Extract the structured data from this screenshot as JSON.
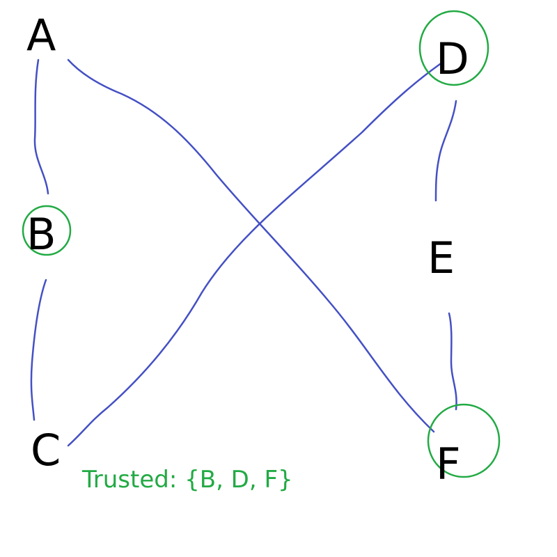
{
  "colors": {
    "background": "#ffffff",
    "node_text": "#000000",
    "edge": "#4450c4",
    "trusted": "#22aa44"
  },
  "nodes": [
    {
      "id": "A",
      "label": "A",
      "trusted": false
    },
    {
      "id": "B",
      "label": "B",
      "trusted": true
    },
    {
      "id": "C",
      "label": "C",
      "trusted": false
    },
    {
      "id": "D",
      "label": "D",
      "trusted": true
    },
    {
      "id": "E",
      "label": "E",
      "trusted": false
    },
    {
      "id": "F",
      "label": "F",
      "trusted": true
    }
  ],
  "edges": [
    {
      "from": "A",
      "to": "B"
    },
    {
      "from": "B",
      "to": "C"
    },
    {
      "from": "A",
      "to": "F"
    },
    {
      "from": "C",
      "to": "D"
    },
    {
      "from": "D",
      "to": "E"
    },
    {
      "from": "E",
      "to": "F"
    }
  ],
  "caption": {
    "text": "Trusted: {B, D, F}"
  }
}
